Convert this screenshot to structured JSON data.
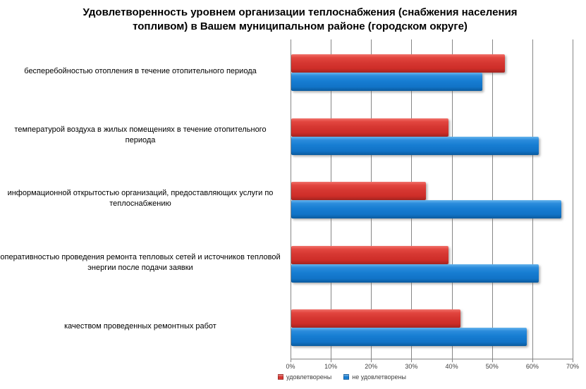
{
  "title": {
    "lines": [
      "Удовлетворенность уровнем организации теплоснабжения (снабжения населения",
      "топливом) в Вашем муниципальном районе (городском округе)"
    ]
  },
  "chart_data": {
    "type": "bar",
    "orientation": "horizontal",
    "title": "Удовлетворенность уровнем организации теплоснабжения (снабжения населения топливом) в Вашем муниципальном районе (городском округе)",
    "categories": [
      "бесперебойностью отопления в течение отопительного периода",
      "температурой воздуха в жилых помещениях в течение отопительного периода",
      "информационной открытостью организаций, предоставляющих услуги по теплоснабжению",
      "оперативностью проведения ремонта тепловых сетей и источников тепловой энергии после подачи заявки",
      "качеством проведенных ремонтных работ"
    ],
    "series": [
      {
        "name": "удовлетворены",
        "color": "#D63732",
        "values": [
          53,
          39,
          33.5,
          39,
          42
        ]
      },
      {
        "name": "не удовлетворены",
        "color": "#177DD2",
        "values": [
          47.5,
          61.5,
          67,
          61.5,
          58.5
        ]
      }
    ],
    "xlabel": "",
    "ylabel": "",
    "xlim": [
      0,
      70
    ],
    "x_ticks": [
      "0%",
      "10%",
      "20%",
      "30%",
      "40%",
      "50%",
      "60%",
      "70%"
    ],
    "grid": true,
    "legend_position": "bottom"
  }
}
